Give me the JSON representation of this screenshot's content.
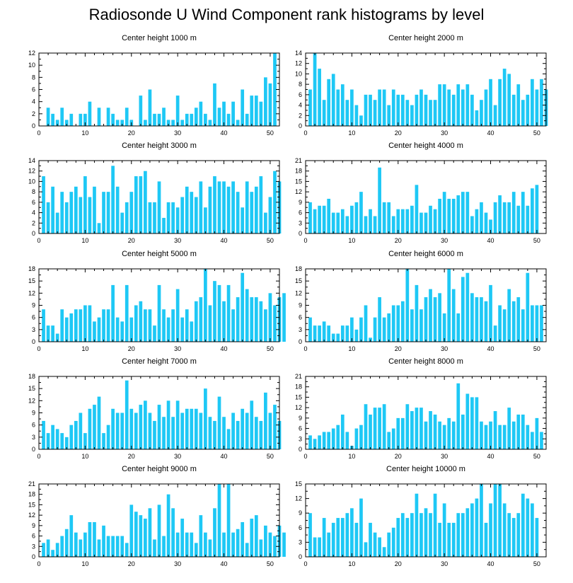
{
  "figure": {
    "title": "Radiosonde U Wind Component rank histograms by level"
  },
  "colors": {
    "bar": "#1EC8F5",
    "axis": "#000000",
    "background": "#ffffff"
  },
  "chart_data": [
    {
      "type": "bar",
      "title": "Center height 1000 m",
      "xlim": [
        0,
        52
      ],
      "ylim": [
        0,
        12
      ],
      "xticks": [
        0,
        10,
        20,
        30,
        40,
        50
      ],
      "yticks": [
        0,
        2,
        4,
        6,
        8,
        10,
        12
      ],
      "values": [
        0,
        0,
        3,
        2,
        1,
        3,
        1,
        2,
        0,
        2,
        2,
        4,
        0,
        3,
        0,
        3,
        2,
        1,
        1,
        3,
        1,
        0,
        5,
        1,
        6,
        2,
        2,
        3,
        1,
        1,
        5,
        1,
        2,
        2,
        3,
        4,
        2,
        1,
        7,
        3,
        4,
        2,
        4,
        1,
        6,
        2,
        5,
        5,
        4,
        8,
        7,
        12
      ]
    },
    {
      "type": "bar",
      "title": "Center height 2000 m",
      "xlim": [
        0,
        52
      ],
      "ylim": [
        0,
        14
      ],
      "xticks": [
        0,
        10,
        20,
        30,
        40,
        50
      ],
      "yticks": [
        0,
        2,
        4,
        6,
        8,
        10,
        12,
        14
      ],
      "values": [
        0,
        7,
        14,
        11,
        5,
        9,
        10,
        7,
        8,
        5,
        7,
        4,
        2,
        6,
        6,
        5,
        7,
        7,
        4,
        7,
        6,
        6,
        5,
        4,
        6,
        7,
        6,
        5,
        5,
        8,
        8,
        7,
        6,
        8,
        7,
        8,
        6,
        3,
        5,
        7,
        9,
        4,
        9,
        11,
        10,
        6,
        8,
        5,
        6,
        9,
        7,
        9,
        7
      ]
    },
    {
      "type": "bar",
      "title": "Center height 3000 m",
      "xlim": [
        0,
        52
      ],
      "ylim": [
        0,
        14
      ],
      "xticks": [
        0,
        10,
        20,
        30,
        40,
        50
      ],
      "yticks": [
        0,
        2,
        4,
        6,
        8,
        10,
        12,
        14
      ],
      "values": [
        0,
        11,
        6,
        9,
        4,
        8,
        6,
        8,
        9,
        7,
        11,
        7,
        9,
        2,
        8,
        8,
        13,
        9,
        4,
        6,
        8,
        11,
        11,
        12,
        6,
        6,
        10,
        3,
        6,
        6,
        5,
        7,
        9,
        8,
        7,
        10,
        5,
        9,
        11,
        10,
        10,
        9,
        10,
        8,
        5,
        10,
        8,
        9,
        11,
        4,
        7,
        12,
        10
      ]
    },
    {
      "type": "bar",
      "title": "Center height 4000 m",
      "xlim": [
        0,
        52
      ],
      "ylim": [
        0,
        21
      ],
      "xticks": [
        0,
        10,
        20,
        30,
        40,
        50
      ],
      "yticks": [
        0,
        3,
        6,
        9,
        12,
        15,
        18,
        21
      ],
      "values": [
        0,
        9,
        7,
        8,
        8,
        10,
        6,
        6,
        7,
        5,
        8,
        9,
        12,
        5,
        7,
        5,
        19,
        9,
        9,
        5,
        7,
        7,
        7,
        8,
        14,
        6,
        6,
        8,
        7,
        10,
        12,
        10,
        10,
        11,
        12,
        12,
        5,
        7,
        9,
        6,
        4,
        9,
        11,
        9,
        9,
        12,
        8,
        12,
        8,
        13,
        14
      ]
    },
    {
      "type": "bar",
      "title": "Center height 5000 m",
      "xlim": [
        0,
        52
      ],
      "ylim": [
        0,
        18
      ],
      "xticks": [
        0,
        10,
        20,
        30,
        40,
        50
      ],
      "yticks": [
        0,
        3,
        6,
        9,
        12,
        15,
        18
      ],
      "values": [
        0,
        8,
        4,
        4,
        2,
        8,
        6,
        7,
        8,
        8,
        9,
        9,
        5,
        6,
        8,
        8,
        14,
        6,
        5,
        14,
        6,
        9,
        10,
        8,
        8,
        4,
        14,
        8,
        6,
        8,
        13,
        6,
        8,
        5,
        10,
        11,
        18,
        9,
        15,
        14,
        10,
        14,
        8,
        11,
        17,
        13,
        11,
        11,
        10,
        8,
        12,
        9,
        11,
        12
      ]
    },
    {
      "type": "bar",
      "title": "Center height 6000 m",
      "xlim": [
        0,
        52
      ],
      "ylim": [
        0,
        18
      ],
      "xticks": [
        0,
        10,
        20,
        30,
        40,
        50
      ],
      "yticks": [
        0,
        3,
        6,
        9,
        12,
        15,
        18
      ],
      "values": [
        0,
        6,
        4,
        4,
        5,
        4,
        2,
        2,
        4,
        4,
        6,
        3,
        6,
        9,
        1,
        6,
        11,
        6,
        7,
        9,
        9,
        10,
        18,
        8,
        14,
        8,
        11,
        13,
        11,
        12,
        7,
        18,
        13,
        7,
        16,
        17,
        12,
        11,
        11,
        10,
        14,
        4,
        9,
        8,
        13,
        10,
        11,
        8,
        17,
        9,
        9,
        9
      ]
    },
    {
      "type": "bar",
      "title": "Center height 7000 m",
      "xlim": [
        0,
        52
      ],
      "ylim": [
        0,
        18
      ],
      "xticks": [
        0,
        10,
        20,
        30,
        40,
        50
      ],
      "yticks": [
        0,
        3,
        6,
        9,
        12,
        15,
        18
      ],
      "values": [
        0,
        7,
        4,
        6,
        5,
        4,
        3,
        6,
        7,
        9,
        4,
        10,
        11,
        13,
        4,
        6,
        10,
        9,
        9,
        17,
        10,
        9,
        11,
        12,
        9,
        7,
        11,
        8,
        12,
        8,
        12,
        9,
        10,
        10,
        10,
        9,
        15,
        8,
        7,
        13,
        8,
        5,
        9,
        7,
        10,
        9,
        12,
        8,
        7,
        14,
        9,
        11,
        7
      ]
    },
    {
      "type": "bar",
      "title": "Center height 8000 m",
      "xlim": [
        0,
        52
      ],
      "ylim": [
        0,
        21
      ],
      "xticks": [
        0,
        10,
        20,
        30,
        40,
        50
      ],
      "yticks": [
        0,
        3,
        6,
        9,
        12,
        15,
        18,
        21
      ],
      "values": [
        0,
        4,
        3,
        4,
        5,
        5,
        6,
        7,
        10,
        5,
        1,
        6,
        7,
        13,
        10,
        12,
        12,
        13,
        5,
        6,
        9,
        9,
        13,
        11,
        12,
        12,
        8,
        11,
        10,
        8,
        7,
        9,
        8,
        19,
        10,
        16,
        15,
        15,
        8,
        7,
        8,
        11,
        7,
        7,
        12,
        8,
        10,
        10,
        7,
        5,
        9,
        5
      ]
    },
    {
      "type": "bar",
      "title": "Center height 9000 m",
      "xlim": [
        0,
        52
      ],
      "ylim": [
        0,
        21
      ],
      "xticks": [
        0,
        10,
        20,
        30,
        40,
        50
      ],
      "yticks": [
        0,
        3,
        6,
        9,
        12,
        15,
        18,
        21
      ],
      "values": [
        0,
        4,
        5,
        2,
        4,
        6,
        8,
        12,
        7,
        5,
        7,
        10,
        10,
        5,
        9,
        6,
        6,
        6,
        6,
        4,
        15,
        13,
        12,
        11,
        14,
        5,
        15,
        6,
        18,
        14,
        7,
        11,
        7,
        7,
        4,
        12,
        7,
        5,
        14,
        21,
        7,
        21,
        7,
        8,
        10,
        4,
        11,
        12,
        5,
        9,
        7,
        6,
        9,
        7
      ]
    },
    {
      "type": "bar",
      "title": "Center height 10000 m",
      "xlim": [
        0,
        52
      ],
      "ylim": [
        0,
        15
      ],
      "xticks": [
        0,
        10,
        20,
        30,
        40,
        50
      ],
      "yticks": [
        0,
        3,
        6,
        9,
        12,
        15
      ],
      "values": [
        0,
        9,
        4,
        4,
        8,
        5,
        7,
        8,
        8,
        9,
        10,
        7,
        12,
        3,
        7,
        5,
        4,
        2,
        5,
        6,
        8,
        9,
        8,
        9,
        13,
        9,
        10,
        9,
        13,
        7,
        11,
        7,
        7,
        9,
        9,
        10,
        11,
        12,
        15,
        7,
        11,
        15,
        15,
        11,
        9,
        8,
        9,
        13,
        12,
        11,
        8
      ]
    }
  ]
}
